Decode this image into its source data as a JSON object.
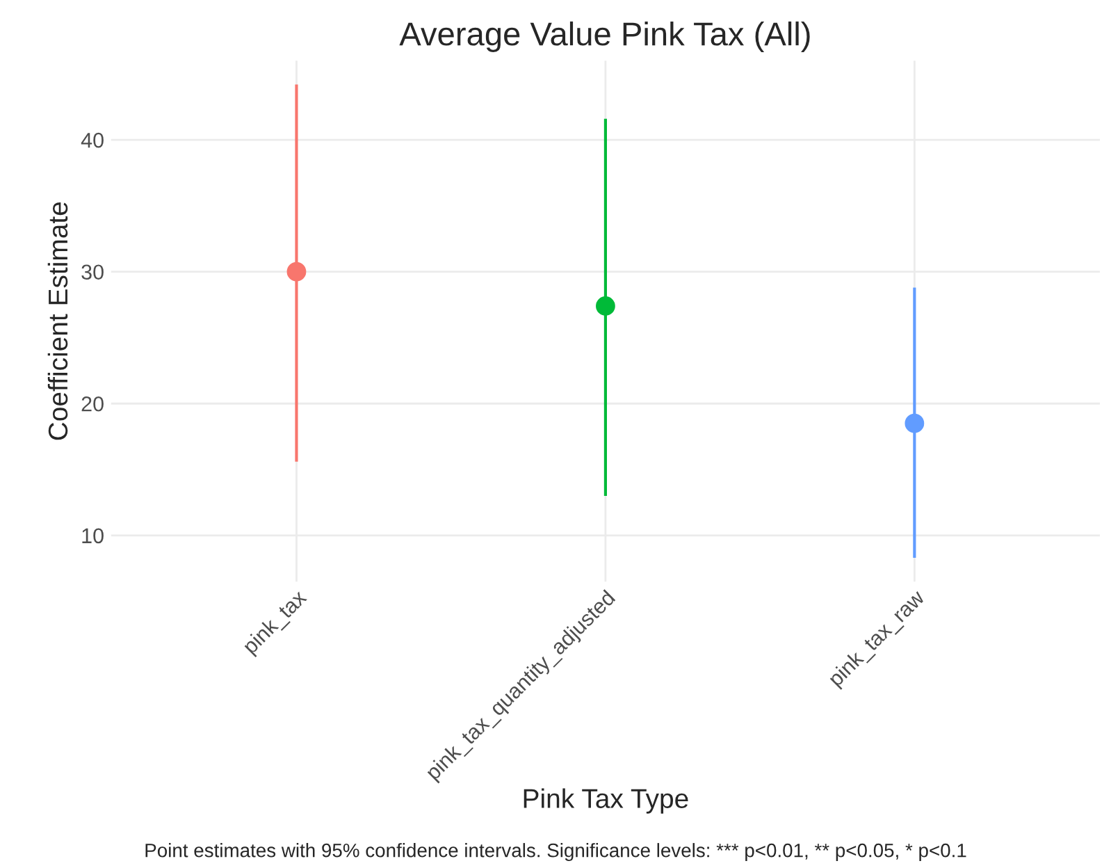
{
  "chart_data": {
    "type": "scatter",
    "title": "Average Value Pink Tax (All)",
    "xlabel": "Pink Tax Type",
    "ylabel": "Coefficient Estimate",
    "categories": [
      "pink_tax",
      "pink_tax_quantity_adjusted",
      "pink_tax_raw"
    ],
    "values": [
      30.0,
      27.4,
      18.5
    ],
    "errors": [
      [
        15.6,
        44.2
      ],
      [
        13.0,
        41.6
      ],
      [
        8.3,
        28.8
      ]
    ],
    "colors": [
      "#f8766d",
      "#00ba38",
      "#619cff"
    ],
    "ylim": [
      6.5,
      46
    ],
    "yticks": [
      10,
      20,
      30,
      40
    ],
    "grid": true,
    "marker": "circle",
    "annotations": [
      "Point estimates with 95% confidence intervals. Significance levels: *** p<0.01, ** p<0.05, * p<0.1"
    ]
  }
}
